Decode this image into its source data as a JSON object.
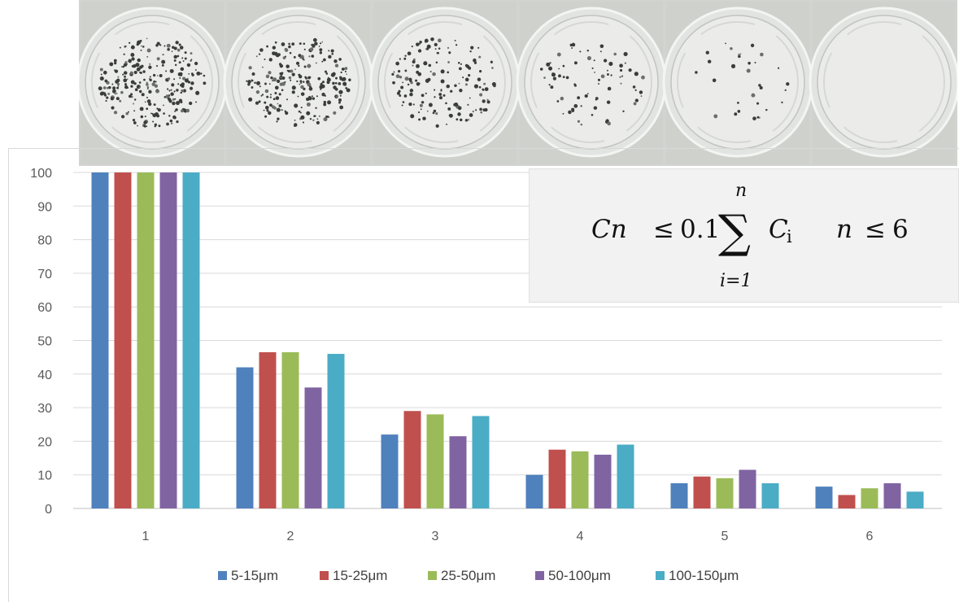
{
  "chart_data": {
    "type": "bar",
    "title": "",
    "xlabel": "",
    "ylabel": "",
    "categories": [
      "1",
      "2",
      "3",
      "4",
      "5",
      "6"
    ],
    "ylim": [
      0,
      100
    ],
    "yticks": [
      "0",
      "10",
      "20",
      "30",
      "40",
      "50",
      "60",
      "70",
      "80",
      "90",
      "100"
    ],
    "grid": true,
    "legend_position": "bottom",
    "series": [
      {
        "name": "5-15μm",
        "color": "#4f81bd",
        "values": [
          100,
          42,
          22,
          10,
          7.5,
          6.5
        ]
      },
      {
        "name": "15-25μm",
        "color": "#c0504d",
        "values": [
          100,
          46.5,
          29,
          17.5,
          9.5,
          4
        ]
      },
      {
        "name": "25-50μm",
        "color": "#9bbb59",
        "values": [
          100,
          46.5,
          28,
          17,
          9,
          6
        ]
      },
      {
        "name": "50-100μm",
        "color": "#8064a2",
        "values": [
          100,
          36,
          21.5,
          16,
          11.5,
          7.5
        ]
      },
      {
        "name": "100-150μm",
        "color": "#4bacc6",
        "values": [
          100,
          46,
          27.5,
          19,
          7.5,
          5
        ]
      }
    ]
  },
  "formula": {
    "lhs": "Cn",
    "leq1": "≤",
    "coef": "0.1",
    "sigma": "∑",
    "upper": "n",
    "lower": "i=1",
    "term_base": "C",
    "term_sub": "i",
    "rhs_var": "n",
    "leq2": "≤",
    "rhs_val": "6"
  },
  "dishes": {
    "count": 6,
    "densities": [
      1,
      0.9,
      0.6,
      0.3,
      0.12,
      0
    ]
  }
}
